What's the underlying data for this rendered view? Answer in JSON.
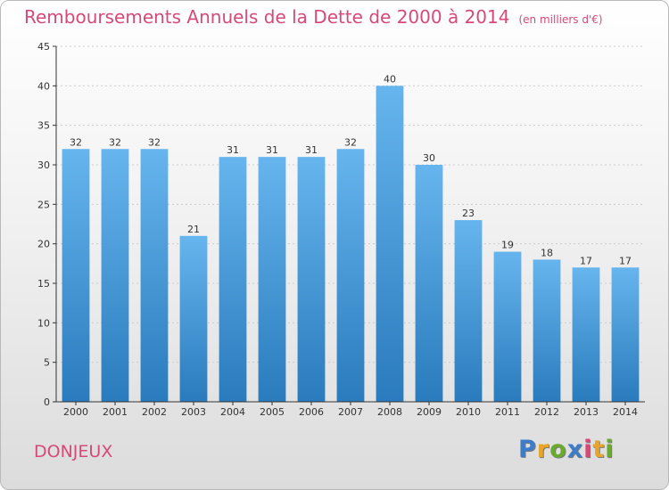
{
  "title": "Remboursements Annuels de la Dette de 2000 à 2014",
  "unit": "(en milliers d'€)",
  "commune": "DONJEUX",
  "brand": "Proxiti",
  "colors": {
    "title": "#d64a78",
    "bar_light": "#66b5ee",
    "bar_dark": "#2a7bbd",
    "axis": "#333333",
    "grid": "#cccccc",
    "brand_letters": [
      "#3d7cc9",
      "#e8a52a",
      "#6aab2f",
      "#3d7cc9",
      "#d64a78",
      "#e8a52a",
      "#6aab2f"
    ]
  },
  "chart_data": {
    "type": "bar",
    "categories": [
      "2000",
      "2001",
      "2002",
      "2003",
      "2004",
      "2005",
      "2006",
      "2007",
      "2008",
      "2009",
      "2010",
      "2011",
      "2012",
      "2013",
      "2014"
    ],
    "values": [
      32,
      32,
      32,
      21,
      31,
      31,
      31,
      32,
      40,
      30,
      23,
      19,
      18,
      17,
      17
    ],
    "ylim": [
      0,
      45
    ],
    "yticks": [
      0,
      5,
      10,
      15,
      20,
      25,
      30,
      35,
      40,
      45
    ],
    "grid": true,
    "data_labels": true
  }
}
